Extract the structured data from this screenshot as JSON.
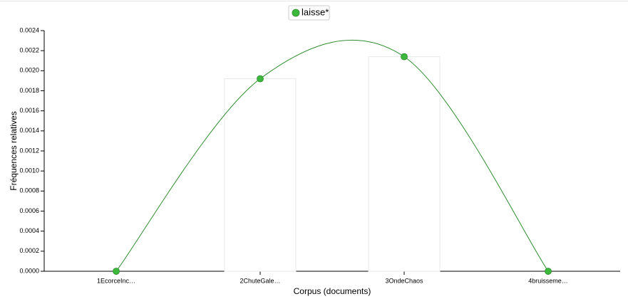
{
  "chart_data": {
    "type": "line",
    "x_label": "Corpus (documents)",
    "y_label": "Fréquences relatives",
    "categories": [
      "1EcorceInc…",
      "2ChuteGale…",
      "3OndeChaos",
      "4bruisseme…"
    ],
    "series": [
      {
        "name": "laisse*",
        "color": "#3cb83c",
        "line_color": "#2e8b2e",
        "values": [
          0,
          0.00192,
          0.00214,
          0
        ]
      }
    ],
    "ylim": [
      0,
      0.0024
    ],
    "yticks": [
      {
        "value": 0,
        "label": "0.0000"
      },
      {
        "value": 0.0002,
        "label": "0.0002"
      },
      {
        "value": 0.0004,
        "label": "0.0004"
      },
      {
        "value": 0.0006,
        "label": "0.0006"
      },
      {
        "value": 0.0008,
        "label": "0.0008"
      },
      {
        "value": 0.001,
        "label": "0.0010"
      },
      {
        "value": 0.0012,
        "label": "0.0012"
      },
      {
        "value": 0.0014,
        "label": "0.0014"
      },
      {
        "value": 0.0016,
        "label": "0.0016"
      },
      {
        "value": 0.0018,
        "label": "0.0018"
      },
      {
        "value": 0.002,
        "label": "0.0020"
      },
      {
        "value": 0.0022,
        "label": "0.0022"
      },
      {
        "value": 0.0024,
        "label": "0.0024"
      }
    ],
    "legend": "top",
    "bars": true
  }
}
